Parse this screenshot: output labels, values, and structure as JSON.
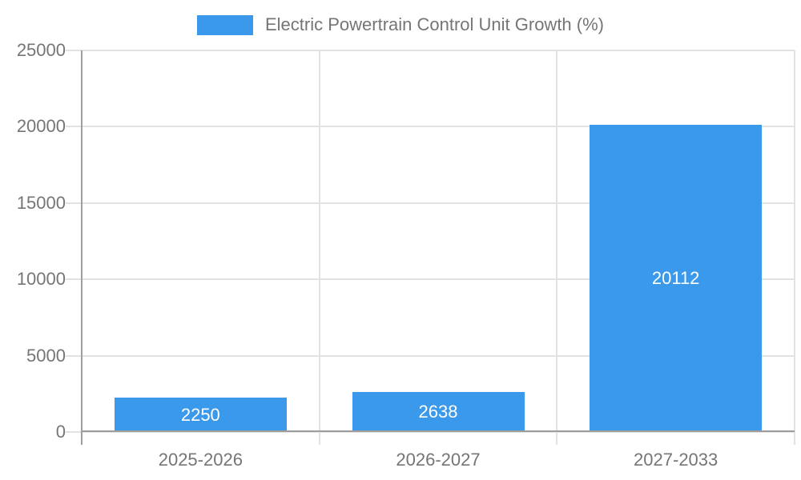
{
  "chart_data": {
    "type": "bar",
    "title": "Electric Powertrain Control Unit Growth (%)",
    "legend": [
      "Electric Powertrain Control Unit Growth (%)"
    ],
    "legend_position": "top",
    "categories": [
      "2025-2026",
      "2026-2027",
      "2027-2033"
    ],
    "values": [
      2250,
      2638,
      20112
    ],
    "value_labels": [
      "2250",
      "2638",
      "20112"
    ],
    "xlabel": "",
    "ylabel": "",
    "ylim": [
      0,
      25000
    ],
    "yticks": [
      0,
      5000,
      10000,
      15000,
      20000,
      25000
    ],
    "grid": true
  },
  "colors": {
    "bar": "#3B99EC",
    "grid_line": "#E2E2E2",
    "axis_line": "#9E9E9E",
    "tick_text": "#757575",
    "legend_text": "#757575",
    "value_label_text": "#FFFFFF",
    "background": "#FFFFFF"
  }
}
